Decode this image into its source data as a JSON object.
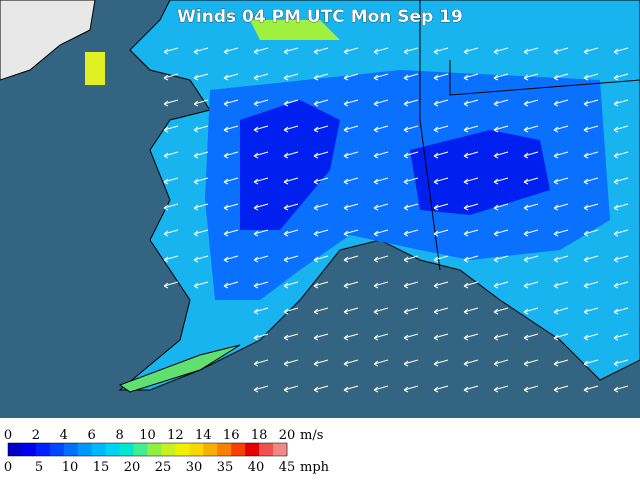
{
  "title": "Winds 04 PM UTC Mon Sep 19",
  "legend": {
    "ms_labels": [
      "0",
      "2",
      "4",
      "6",
      "8",
      "10",
      "12",
      "14",
      "16",
      "18",
      "20"
    ],
    "ms_unit": "m/s",
    "mph_labels": [
      "0",
      "5",
      "10",
      "15",
      "20",
      "25",
      "30",
      "35",
      "40",
      "45"
    ],
    "mph_unit": "mph",
    "colors": [
      "#0000c8",
      "#0000f0",
      "#0020ff",
      "#0048ff",
      "#0070ff",
      "#0098ff",
      "#00b8ff",
      "#00d4f0",
      "#00e8d0",
      "#40f090",
      "#90f040",
      "#c8f020",
      "#f0f000",
      "#f8d800",
      "#f8b000",
      "#f88000",
      "#f84000",
      "#e80000",
      "#f05050",
      "#f08888"
    ]
  }
}
